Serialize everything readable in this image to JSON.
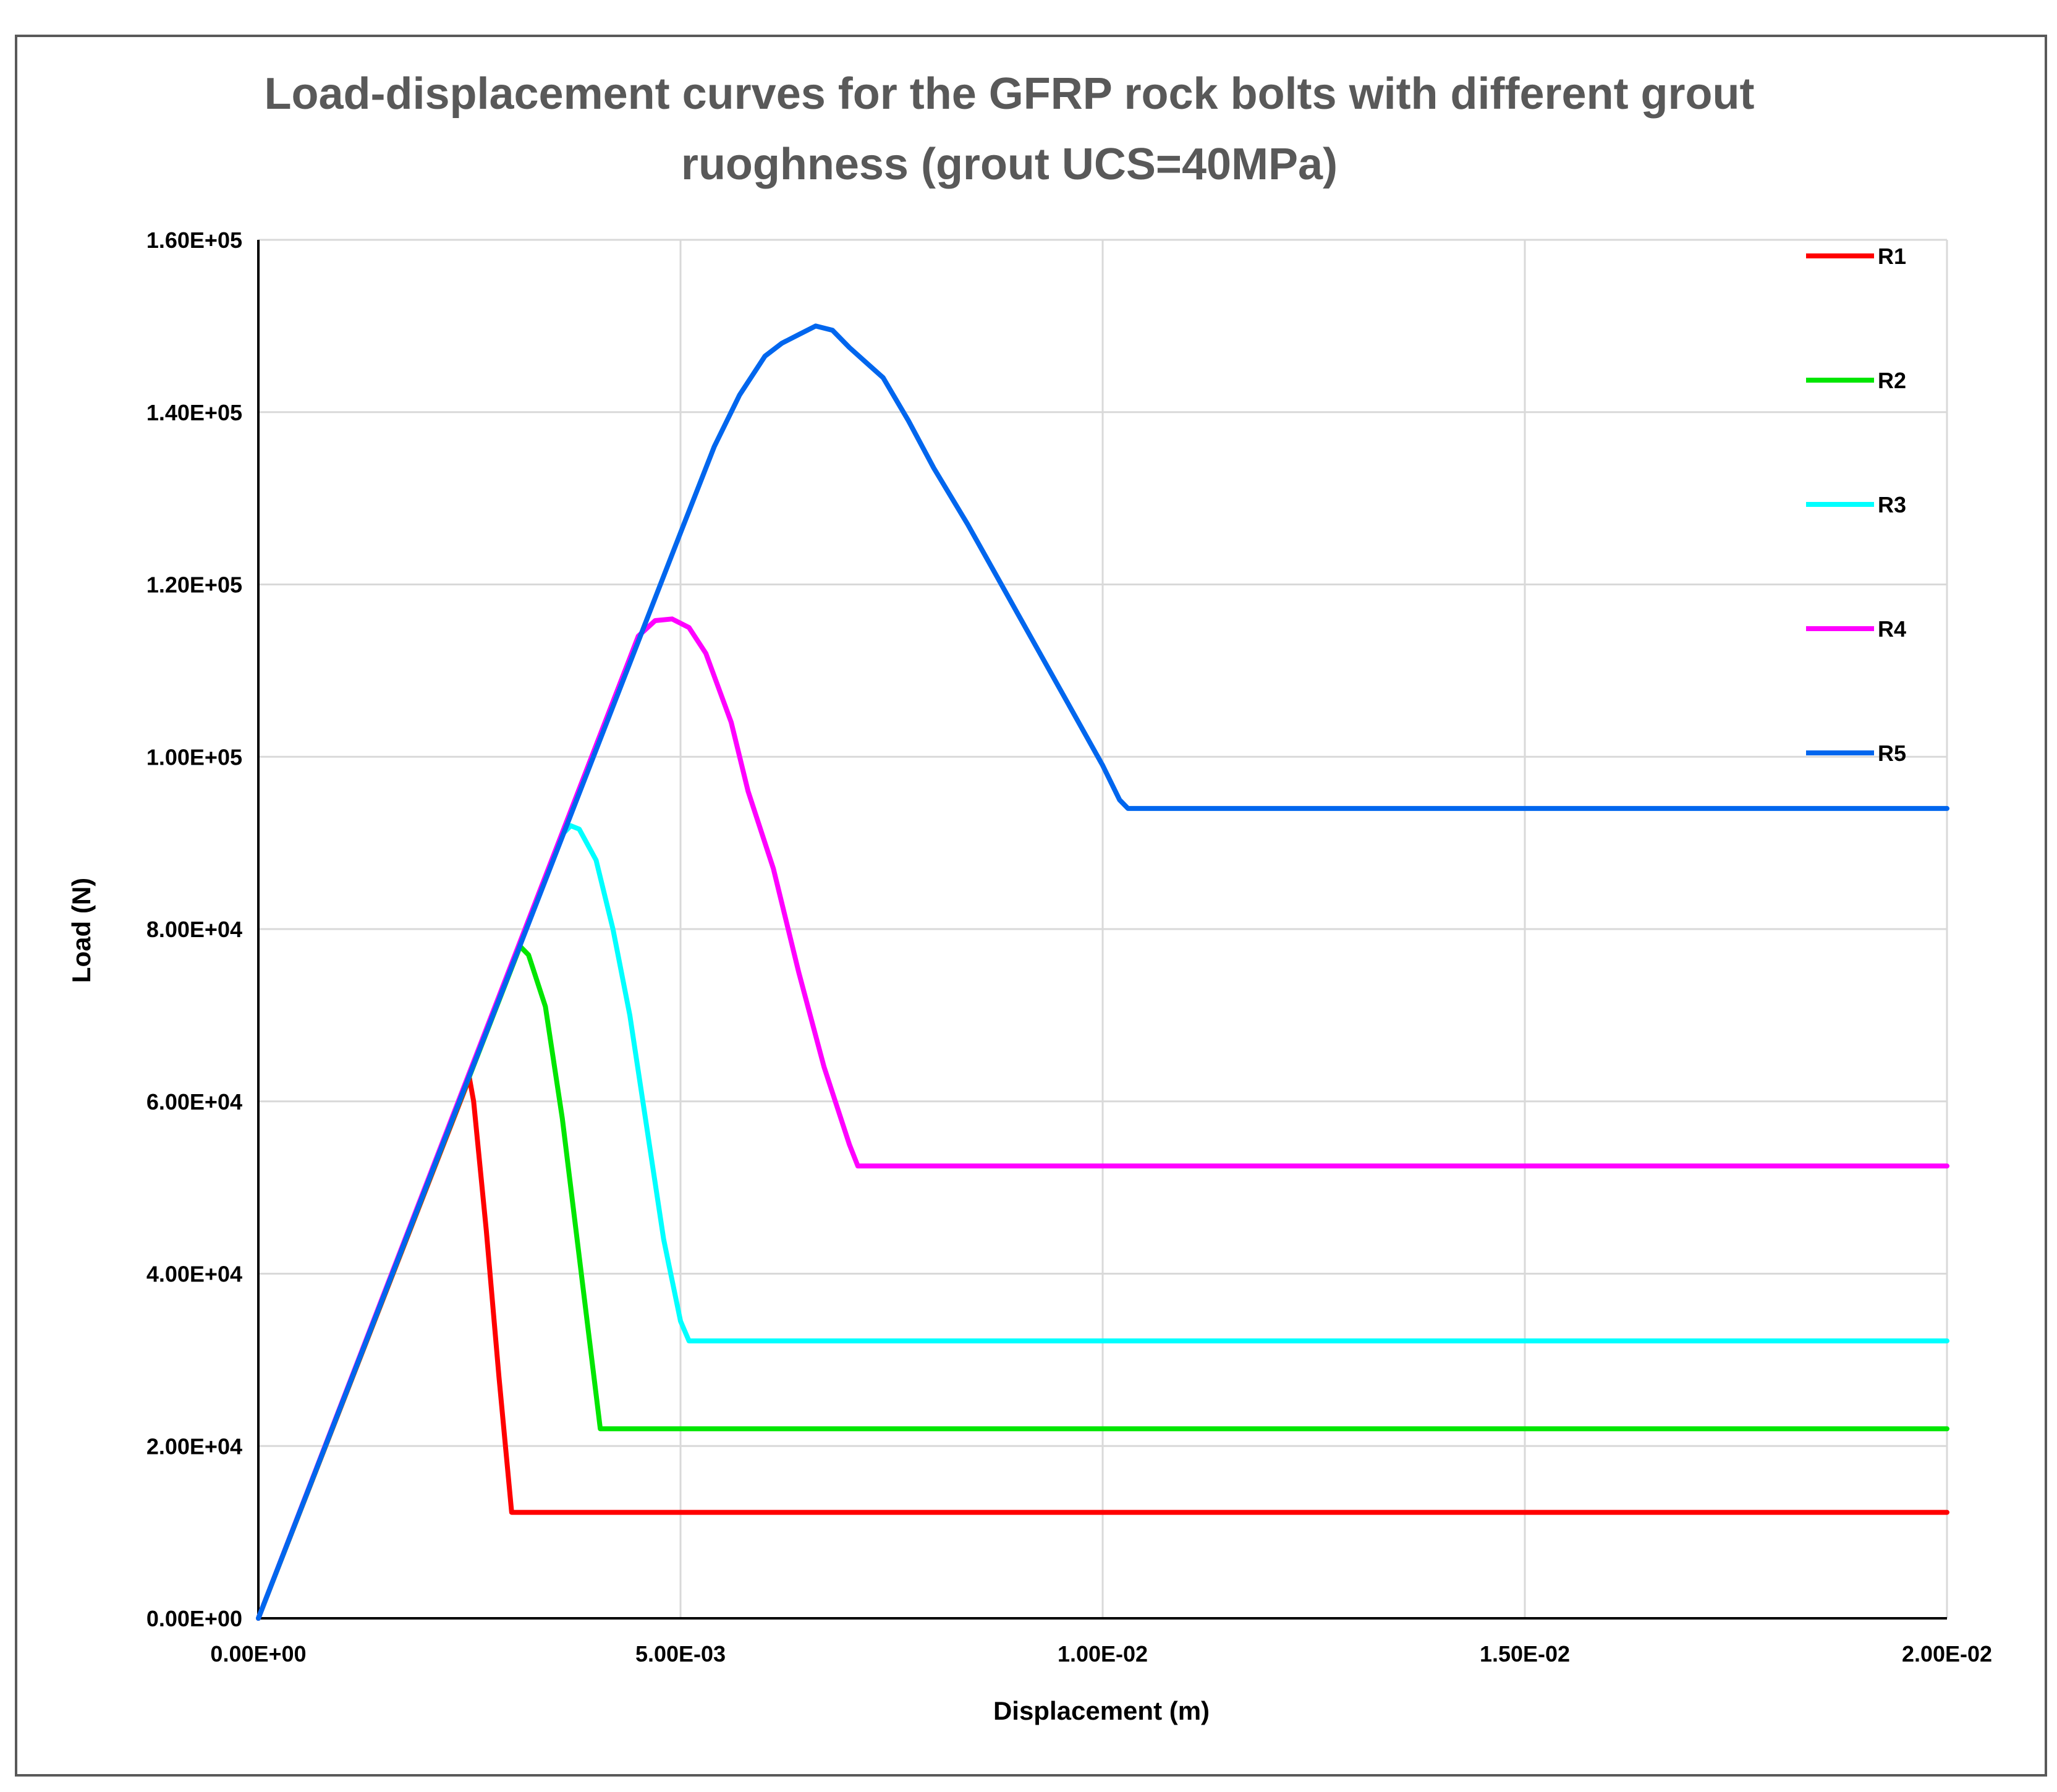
{
  "chart_data": {
    "type": "line",
    "title_lines": [
      "Load-displacement curves for the GFRP rock bolts with different grout",
      "ruoghness (grout UCS=40MPa)"
    ],
    "xlabel": "Displacement (m)",
    "ylabel": "Load (N)",
    "xlim": [
      0,
      0.02
    ],
    "ylim": [
      0,
      160000
    ],
    "x_ticks": [
      0,
      0.005,
      0.01,
      0.015,
      0.02
    ],
    "x_tick_labels": [
      "0.00E+00",
      "5.00E-03",
      "1.00E-02",
      "1.50E-02",
      "2.00E-02"
    ],
    "y_ticks": [
      0,
      20000,
      40000,
      60000,
      80000,
      100000,
      120000,
      140000,
      160000
    ],
    "y_tick_labels": [
      "0.00E+00",
      "2.00E+04",
      "4.00E+04",
      "6.00E+04",
      "8.00E+04",
      "1.00E+05",
      "1.20E+05",
      "1.40E+05",
      "1.60E+05"
    ],
    "grid": true,
    "legend_position": "right",
    "series": [
      {
        "name": "R1",
        "color": "#ff0000",
        "points": [
          [
            0,
            0
          ],
          [
            0.0025,
            62700
          ],
          [
            0.00255,
            60000
          ],
          [
            0.0027,
            45000
          ],
          [
            0.00285,
            28000
          ],
          [
            0.003,
            12300
          ],
          [
            0.02,
            12300
          ]
        ]
      },
      {
        "name": "R2",
        "color": "#00e600",
        "points": [
          [
            0,
            0
          ],
          [
            0.0031,
            78000
          ],
          [
            0.0032,
            77000
          ],
          [
            0.0034,
            71000
          ],
          [
            0.0036,
            58000
          ],
          [
            0.0038,
            42000
          ],
          [
            0.004,
            26000
          ],
          [
            0.00405,
            22000
          ],
          [
            0.02,
            22000
          ]
        ]
      },
      {
        "name": "R3",
        "color": "#00ffff",
        "points": [
          [
            0,
            0
          ],
          [
            0.0036,
            91000
          ],
          [
            0.0037,
            92000
          ],
          [
            0.0038,
            91600
          ],
          [
            0.004,
            88000
          ],
          [
            0.0042,
            80000
          ],
          [
            0.0044,
            70000
          ],
          [
            0.0046,
            57000
          ],
          [
            0.0048,
            44000
          ],
          [
            0.005,
            34500
          ],
          [
            0.0051,
            32200
          ],
          [
            0.02,
            32200
          ]
        ]
      },
      {
        "name": "R4",
        "color": "#ff00ff",
        "points": [
          [
            0,
            0
          ],
          [
            0.0045,
            114000
          ],
          [
            0.0047,
            115800
          ],
          [
            0.0049,
            116000
          ],
          [
            0.0051,
            115000
          ],
          [
            0.0053,
            112000
          ],
          [
            0.0056,
            104000
          ],
          [
            0.0058,
            96000
          ],
          [
            0.0061,
            87000
          ],
          [
            0.0064,
            75000
          ],
          [
            0.0067,
            64000
          ],
          [
            0.007,
            55000
          ],
          [
            0.0071,
            52500
          ],
          [
            0.02,
            52500
          ]
        ]
      },
      {
        "name": "R5",
        "color": "#0066ee",
        "points": [
          [
            0,
            0
          ],
          [
            0.005,
            126000
          ],
          [
            0.0054,
            136000
          ],
          [
            0.0057,
            142000
          ],
          [
            0.006,
            146500
          ],
          [
            0.0062,
            148000
          ],
          [
            0.0064,
            149000
          ],
          [
            0.0066,
            150000
          ],
          [
            0.0068,
            149500
          ],
          [
            0.007,
            147500
          ],
          [
            0.0074,
            144000
          ],
          [
            0.0077,
            139000
          ],
          [
            0.008,
            133500
          ],
          [
            0.0084,
            127000
          ],
          [
            0.0088,
            120000
          ],
          [
            0.0092,
            113000
          ],
          [
            0.0096,
            106000
          ],
          [
            0.01,
            99000
          ],
          [
            0.0102,
            95000
          ],
          [
            0.0103,
            94000
          ],
          [
            0.02,
            94000
          ]
        ]
      }
    ]
  }
}
